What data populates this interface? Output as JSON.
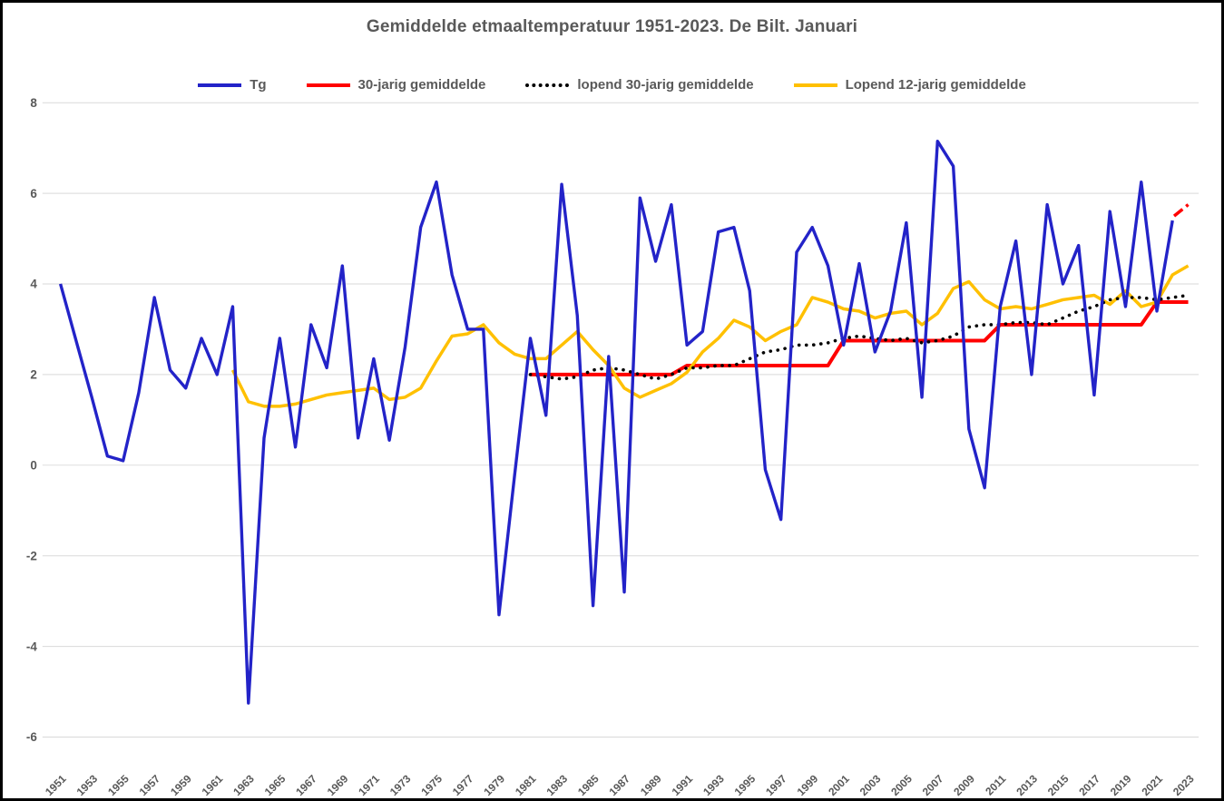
{
  "title": "Gemiddelde etmaaltemperatuur 1951-2023. De Bilt. Januari",
  "colors": {
    "tg_blue": "#2323C8",
    "normal_red": "#FF0000",
    "running30_black": "#000000",
    "running12_yellow": "#FFC000",
    "gridline": "#D9D9D9",
    "text_gray": "#595959",
    "frame_border": "#000000",
    "background": "#FFFFFF"
  },
  "chart_data": {
    "type": "line",
    "title": "Gemiddelde etmaaltemperatuur 1951-2023. De Bilt. Januari",
    "xlabel": "",
    "ylabel": "",
    "grid": "horizontal-only",
    "legend_position": "top",
    "axis": {
      "x_range": [
        1951,
        2023
      ],
      "ylim": [
        -6,
        8
      ],
      "yticks": [
        8,
        6,
        4,
        2,
        0,
        -2,
        -4,
        -6
      ],
      "xticks": [
        "1951",
        "1953",
        "1955",
        "1957",
        "1959",
        "1961",
        "1963",
        "1965",
        "1967",
        "1969",
        "1971",
        "1973",
        "1975",
        "1977",
        "1979",
        "1981",
        "1983",
        "1985",
        "1987",
        "1989",
        "1991",
        "1993",
        "1995",
        "1997",
        "1999",
        "2001",
        "2003",
        "2005",
        "2007",
        "2009",
        "2011",
        "2013",
        "2015",
        "2017",
        "2019",
        "2021",
        "2023"
      ]
    },
    "legend": [
      {
        "label": "Tg",
        "color": "#2323C8",
        "style": "solid"
      },
      {
        "label": "30-jarig gemiddelde",
        "color": "#FF0000",
        "style": "solid"
      },
      {
        "label": "lopend 30-jarig gemiddelde",
        "color": "#000000",
        "style": "dotted"
      },
      {
        "label": "Lopend 12-jarig gemiddelde",
        "color": "#FFC000",
        "style": "solid"
      }
    ],
    "series": [
      {
        "name": "30-jarig gemiddelde",
        "color": "#FF0000",
        "style": "solid",
        "width": 4,
        "points": [
          [
            1981,
            2.0
          ],
          [
            1990,
            2.0
          ],
          [
            1991,
            2.2
          ],
          [
            2000,
            2.2
          ],
          [
            2001,
            2.75
          ],
          [
            2010,
            2.75
          ],
          [
            2011,
            3.1
          ],
          [
            2020,
            3.1
          ],
          [
            2021,
            3.6
          ],
          [
            2023,
            3.6
          ]
        ]
      },
      {
        "name": "Lopend 12-jarig gemiddelde",
        "color": "#FFC000",
        "style": "solid",
        "width": 3.5,
        "start_year": 1962,
        "values": [
          2.1,
          1.4,
          1.3,
          1.3,
          1.35,
          1.45,
          1.55,
          1.6,
          1.65,
          1.7,
          1.45,
          1.5,
          1.7,
          2.3,
          2.85,
          2.9,
          3.1,
          2.7,
          2.45,
          2.35,
          2.35,
          2.65,
          2.95,
          2.55,
          2.2,
          1.7,
          1.5,
          1.65,
          1.8,
          2.05,
          2.5,
          2.8,
          3.2,
          3.05,
          2.75,
          2.95,
          3.1,
          3.7,
          3.6,
          3.45,
          3.4,
          3.25,
          3.35,
          3.4,
          3.1,
          3.35,
          3.9,
          4.05,
          3.65,
          3.45,
          3.5,
          3.45,
          3.55,
          3.65,
          3.7,
          3.75,
          3.55,
          3.85,
          3.5,
          3.6,
          4.2,
          4.4
        ]
      },
      {
        "name": "lopend 30-jarig gemiddelde",
        "color": "#000000",
        "style": "dotted",
        "width": 3.6,
        "start_year": 1981,
        "values": [
          2.0,
          1.95,
          1.9,
          1.95,
          2.1,
          2.15,
          2.1,
          2.0,
          1.9,
          2.0,
          2.15,
          2.15,
          2.2,
          2.2,
          2.35,
          2.5,
          2.55,
          2.65,
          2.65,
          2.7,
          2.8,
          2.85,
          2.8,
          2.75,
          2.8,
          2.7,
          2.75,
          2.85,
          3.05,
          3.1,
          3.1,
          3.15,
          3.15,
          3.1,
          3.25,
          3.4,
          3.5,
          3.65,
          3.7,
          3.7,
          3.65,
          3.7,
          3.75
        ]
      },
      {
        "name": "Tg 2023 (voorlopig, gestippeld rood)",
        "color": "#FF0000",
        "style": "dashed",
        "width": 3.5,
        "points": [
          [
            2022.1,
            5.5
          ],
          [
            2023,
            5.75
          ]
        ]
      },
      {
        "name": "Tg",
        "color": "#2323C8",
        "style": "solid",
        "width": 3.4,
        "start_year": 1951,
        "values": [
          4.0,
          2.75,
          1.5,
          0.2,
          0.1,
          1.6,
          3.7,
          2.1,
          1.7,
          2.8,
          2.0,
          3.5,
          -5.25,
          0.6,
          2.8,
          0.4,
          3.1,
          2.15,
          4.4,
          0.6,
          2.35,
          0.55,
          2.6,
          5.25,
          6.25,
          4.2,
          3.0,
          3.0,
          -3.3,
          -0.2,
          2.8,
          1.1,
          6.2,
          3.3,
          -3.1,
          2.4,
          -2.8,
          5.9,
          4.5,
          5.75,
          2.65,
          2.95,
          5.15,
          5.25,
          3.85,
          -0.1,
          -1.2,
          4.7,
          5.25,
          4.4,
          2.65,
          4.45,
          2.5,
          3.4,
          5.35,
          1.5,
          7.15,
          6.6,
          0.8,
          -0.5,
          3.5,
          4.95,
          2.0,
          5.75,
          4.0,
          4.85,
          1.55,
          5.6,
          3.5,
          6.25,
          3.4,
          5.4
        ]
      }
    ]
  }
}
